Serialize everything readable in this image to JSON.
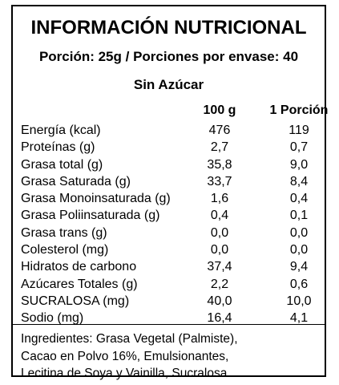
{
  "label": {
    "title": "INFORMACIÓN NUTRICIONAL",
    "serving": "Porción: 25g / Porciones por envase: 40",
    "subtitle": "Sin Azúcar",
    "columns": [
      "100 g",
      "1 Porción"
    ],
    "rows": [
      {
        "name": "Energía (kcal)",
        "per100": "476",
        "perServing": "119"
      },
      {
        "name": "Proteínas (g)",
        "per100": "2,7",
        "perServing": "0,7"
      },
      {
        "name": "Grasa total (g)",
        "per100": "35,8",
        "perServing": "9,0"
      },
      {
        "name": "Grasa Saturada (g)",
        "per100": "33,7",
        "perServing": "8,4"
      },
      {
        "name": "Grasa Monoinsaturada (g)",
        "per100": "1,6",
        "perServing": "0,4"
      },
      {
        "name": "Grasa Poliinsaturada (g)",
        "per100": "0,4",
        "perServing": "0,1"
      },
      {
        "name": "Grasa trans (g)",
        "per100": "0,0",
        "perServing": "0,0"
      },
      {
        "name": "Colesterol (mg)",
        "per100": "0,0",
        "perServing": "0,0"
      },
      {
        "name": "Hidratos de carbono",
        "per100": "37,4",
        "perServing": "9,4"
      },
      {
        "name": "Azúcares Totales (g)",
        "per100": "2,2",
        "perServing": "0,6"
      },
      {
        "name": "SUCRALOSA (mg)",
        "per100": "40,0",
        "perServing": "10,0"
      },
      {
        "name": "Sodio (mg)",
        "per100": "16,4",
        "perServing": "4,1"
      }
    ],
    "ingredients": [
      "Ingredientes: Grasa Vegetal (Palmiste),",
      "Cacao en Polvo 16%, Emulsionantes,",
      "Lecitina de Soya y Vainilla, Sucralosa."
    ]
  }
}
